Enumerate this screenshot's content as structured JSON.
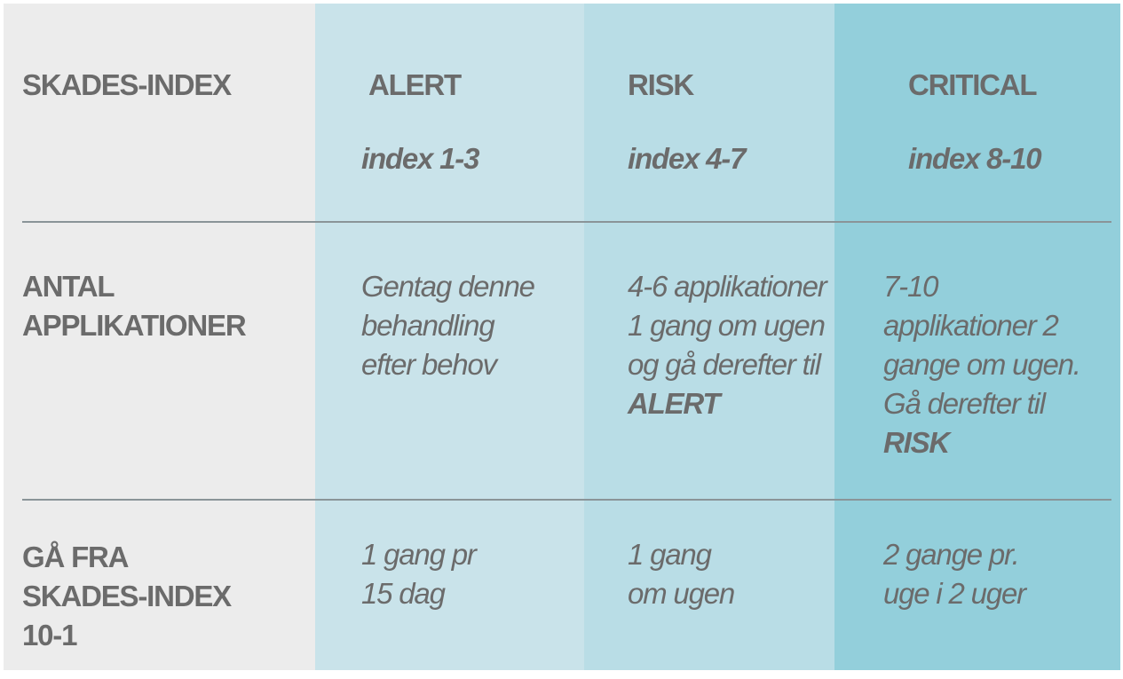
{
  "header": {
    "label": "SKADES-INDEX",
    "alert_title": "ALERT",
    "alert_index": "index 1-3",
    "risk_title": "RISK",
    "risk_index": "index 4-7",
    "critical_title": "CRITICAL",
    "critical_index": "index 8-10"
  },
  "rows": {
    "antal": {
      "label": [
        "ANTAL",
        "APPLIKATIONER"
      ],
      "alert": [
        "Gentag denne",
        "behandling",
        "efter behov"
      ],
      "risk": [
        "4-6 applikationer",
        "1 gang om ugen",
        "og gå derefter til",
        "ALERT"
      ],
      "critical": [
        "7-10",
        "applikationer 2",
        "gange om ugen.",
        "Gå derefter til",
        "RISK"
      ]
    },
    "gaa_fra": {
      "label": [
        "GÅ FRA",
        "SKADES-INDEX",
        "10-1"
      ],
      "alert": [
        "1 gang pr",
        "15 dag"
      ],
      "risk": [
        "1 gang",
        "om ugen"
      ],
      "critical": [
        "2 gange pr.",
        "uge i 2 uger"
      ]
    }
  },
  "colors": {
    "label_column": "#ececec",
    "alert_column": "#c9e3ea",
    "risk_column": "#b9dde6",
    "critical_column": "#93cfdb",
    "text": "#6b6b6b",
    "divider": "#8a9498"
  }
}
